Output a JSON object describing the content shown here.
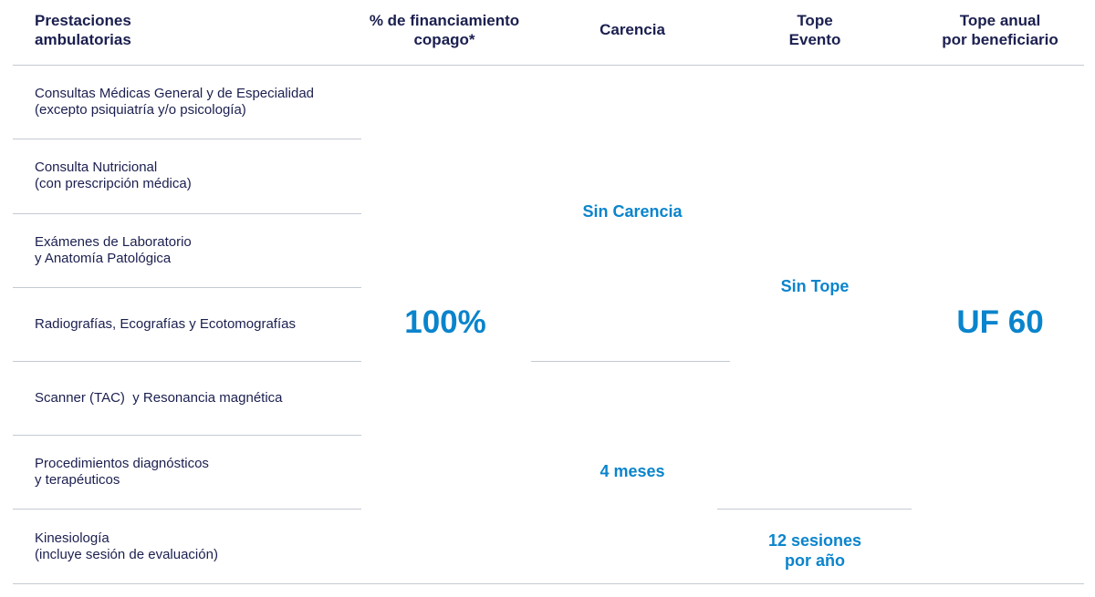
{
  "headers": [
    "Prestaciones\nambulatorias",
    "% de financiamiento\ncopago*",
    "Carencia",
    "Tope\nEvento",
    "Tope anual\npor beneficiario"
  ],
  "rows": [
    "Consultas Médicas General y de Especialidad\n(excepto psiquiatría y/o psicología)",
    "Consulta Nutricional\n(con prescripción médica)",
    "Exámenes de Laboratorio\ny Anatomía Patológica",
    "Radiografías, Ecografías y Ecotomografías",
    "Scanner (TAC)  y Resonancia magnética",
    "Procedimientos diagnósticos\ny terapéuticos",
    "Kinesiología\n(incluye sesión de evaluación)"
  ],
  "financiamiento": "100%",
  "carencia": [
    "Sin Carencia",
    "4 meses"
  ],
  "tope_evento": [
    "Sin Tope",
    "12 sesiones\npor año"
  ],
  "tope_anual": "UF 60",
  "colors": {
    "text": "#1b1f4f",
    "accent": "#0a84cc",
    "divider": "#c3cad3"
  }
}
